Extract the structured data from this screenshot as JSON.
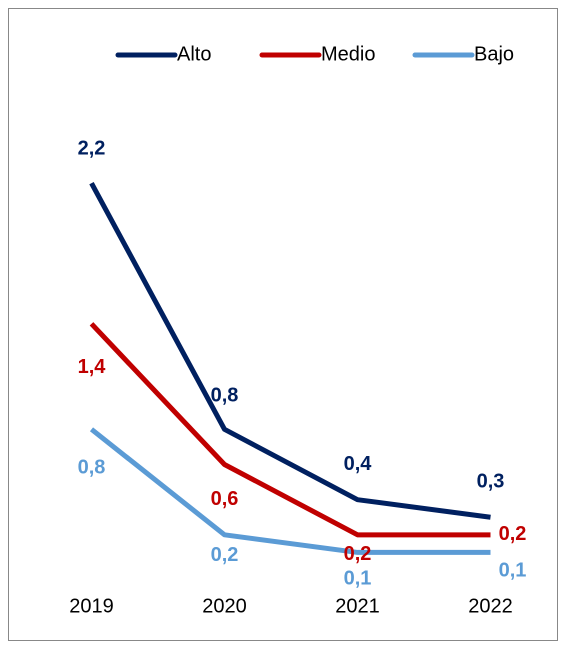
{
  "chart_data": {
    "type": "line",
    "categories": [
      "2019",
      "2020",
      "2021",
      "2022"
    ],
    "series": [
      {
        "name": "Alto",
        "color": "#002060",
        "values": [
          2.2,
          0.8,
          0.4,
          0.3
        ],
        "value_labels": [
          "2,2",
          "0,8",
          "0,4",
          "0,3"
        ]
      },
      {
        "name": "Medio",
        "color": "#c00000",
        "values": [
          1.4,
          0.6,
          0.2,
          0.2
        ],
        "value_labels": [
          "1,4",
          "0,6",
          "0,2",
          "0,2"
        ]
      },
      {
        "name": "Bajo",
        "color": "#5b9bd5",
        "values": [
          0.8,
          0.2,
          0.1,
          0.1
        ],
        "value_labels": [
          "0,8",
          "0,2",
          "0,1",
          "0,1"
        ]
      }
    ],
    "ylim": [
      0,
      2.4
    ],
    "legend": "top"
  }
}
